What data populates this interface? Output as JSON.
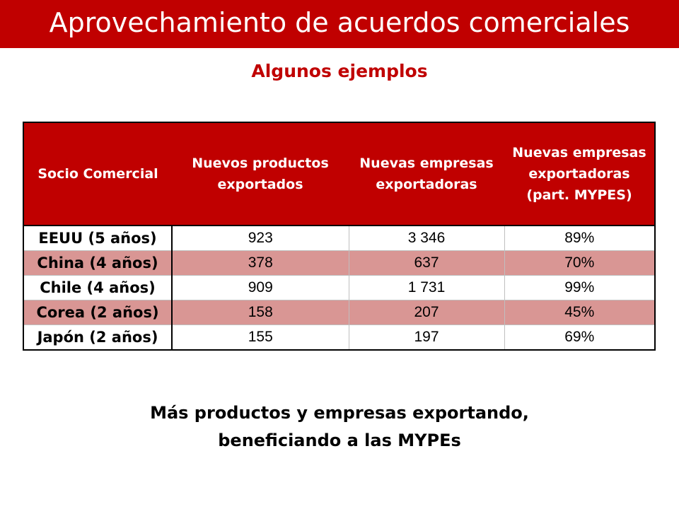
{
  "slide": {
    "title": "Aprovechamiento de acuerdos comerciales",
    "subtitle": "Algunos ejemplos",
    "footer_line1": "Más productos y empresas exportando,",
    "footer_line2": "beneficiando a las MYPEs"
  },
  "colors": {
    "accent": "#c00000",
    "row_shade": "#d99694"
  },
  "table": {
    "headers": [
      "Socio Comercial",
      "Nuevos productos exportados",
      "Nuevas empresas exportadoras",
      "Nuevas empresas exportadoras (part. MYPES)"
    ],
    "rows": [
      {
        "partner": "EEUU (5 años)",
        "products": "923",
        "companies": "3 346",
        "mypes": "89%"
      },
      {
        "partner": "China (4 años)",
        "products": "378",
        "companies": "637",
        "mypes": "70%"
      },
      {
        "partner": "Chile (4 años)",
        "products": "909",
        "companies": "1 731",
        "mypes": "99%"
      },
      {
        "partner": "Corea (2 años)",
        "products": "158",
        "companies": "207",
        "mypes": "45%"
      },
      {
        "partner": "Japón (2 años)",
        "products": "155",
        "companies": "197",
        "mypes": "69%"
      }
    ]
  }
}
